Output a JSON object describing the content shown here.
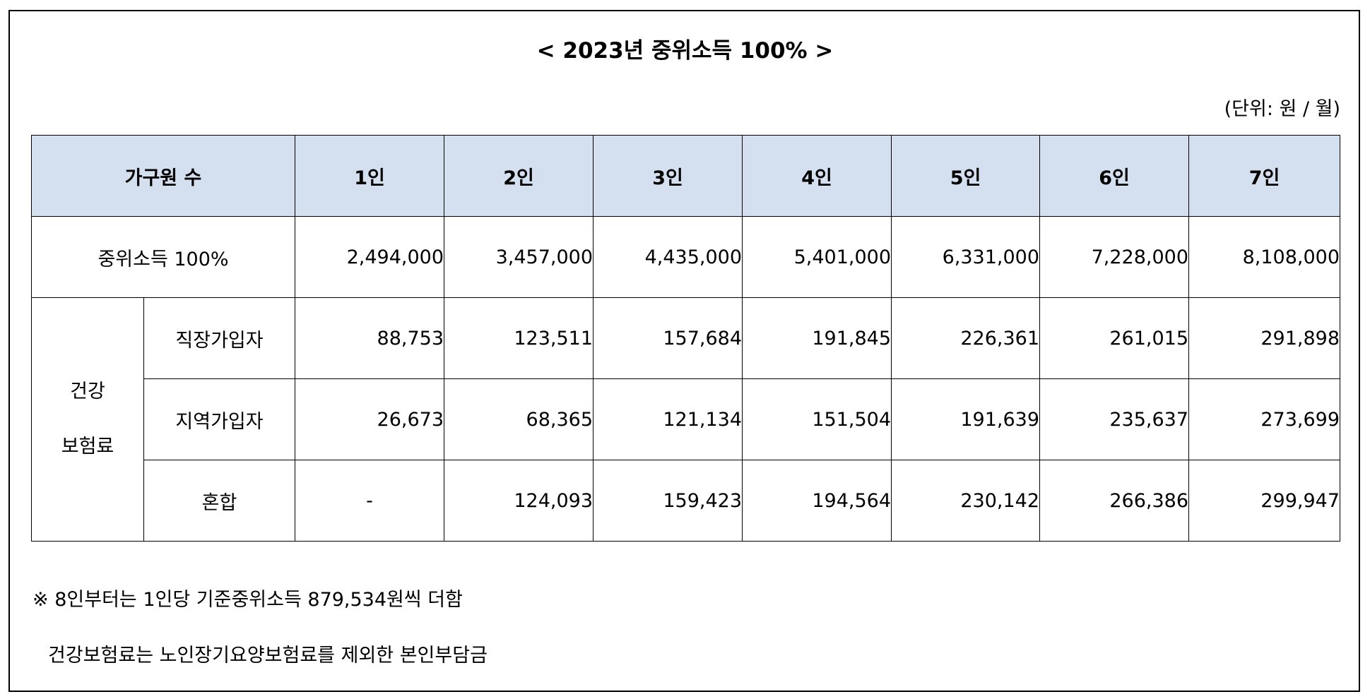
{
  "title": "< 2023년 중위소득 100% >",
  "unit": "(단위: 원 / 월)",
  "table": {
    "header": {
      "label": "가구원 수",
      "columns": [
        "1인",
        "2인",
        "3인",
        "4인",
        "5인",
        "6인",
        "7인"
      ]
    },
    "median_income": {
      "label": "중위소득 100%",
      "values": [
        "2,494,000",
        "3,457,000",
        "4,435,000",
        "5,401,000",
        "6,331,000",
        "7,228,000",
        "8,108,000"
      ]
    },
    "health_insurance": {
      "category_line1": "건강",
      "category_line2": "보험료",
      "rows": [
        {
          "label": "직장가입자",
          "values": [
            "88,753",
            "123,511",
            "157,684",
            "191,845",
            "226,361",
            "261,015",
            "291,898"
          ]
        },
        {
          "label": "지역가입자",
          "values": [
            "26,673",
            "68,365",
            "121,134",
            "151,504",
            "191,639",
            "235,637",
            "273,699"
          ]
        },
        {
          "label": "혼합",
          "values": [
            "-",
            "124,093",
            "159,423",
            "194,564",
            "230,142",
            "266,386",
            "299,947"
          ]
        }
      ]
    }
  },
  "notes": {
    "line1": "※ 8인부터는 1인당 기준중위소득 879,534원씩 더함",
    "line2": "건강보험료는 노인장기요양보험료를 제외한 본인부담금"
  }
}
